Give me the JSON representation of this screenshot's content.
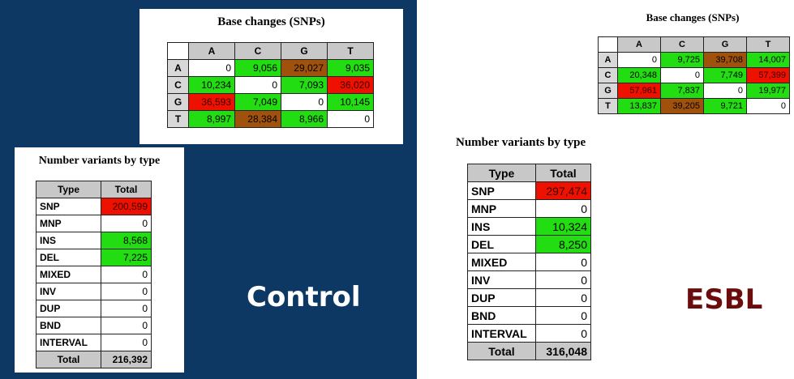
{
  "control": {
    "label": "Control",
    "snp_title": "Base changes (SNPs)",
    "snp_cols": [
      "A",
      "C",
      "G",
      "T"
    ],
    "snp_rows": [
      {
        "base": "A",
        "cells": [
          {
            "v": "0",
            "c": "white"
          },
          {
            "v": "9,056",
            "c": "green"
          },
          {
            "v": "29,027",
            "c": "brown"
          },
          {
            "v": "9,035",
            "c": "green"
          }
        ]
      },
      {
        "base": "C",
        "cells": [
          {
            "v": "10,234",
            "c": "green"
          },
          {
            "v": "0",
            "c": "white"
          },
          {
            "v": "7,093",
            "c": "green"
          },
          {
            "v": "36,020",
            "c": "red"
          }
        ]
      },
      {
        "base": "G",
        "cells": [
          {
            "v": "36,593",
            "c": "red"
          },
          {
            "v": "7,049",
            "c": "green"
          },
          {
            "v": "0",
            "c": "white"
          },
          {
            "v": "10,145",
            "c": "green"
          }
        ]
      },
      {
        "base": "T",
        "cells": [
          {
            "v": "8,997",
            "c": "green"
          },
          {
            "v": "28,384",
            "c": "brown"
          },
          {
            "v": "8,966",
            "c": "green"
          },
          {
            "v": "0",
            "c": "white"
          }
        ]
      }
    ],
    "var_title": "Number variants by type",
    "var_header": [
      "Type",
      "Total"
    ],
    "var_rows": [
      {
        "type": "SNP",
        "total": "200,599",
        "c": "red"
      },
      {
        "type": "MNP",
        "total": "0",
        "c": "white"
      },
      {
        "type": "INS",
        "total": "8,568",
        "c": "green"
      },
      {
        "type": "DEL",
        "total": "7,225",
        "c": "green"
      },
      {
        "type": "MIXED",
        "total": "0",
        "c": "white"
      },
      {
        "type": "INV",
        "total": "0",
        "c": "white"
      },
      {
        "type": "DUP",
        "total": "0",
        "c": "white"
      },
      {
        "type": "BND",
        "total": "0",
        "c": "white"
      },
      {
        "type": "INTERVAL",
        "total": "0",
        "c": "white"
      }
    ],
    "var_total": {
      "label": "Total",
      "value": "216,392"
    }
  },
  "esbl": {
    "label": "ESBL",
    "snp_title": "Base changes (SNPs)",
    "snp_cols": [
      "A",
      "C",
      "G",
      "T"
    ],
    "snp_rows": [
      {
        "base": "A",
        "cells": [
          {
            "v": "0",
            "c": "white"
          },
          {
            "v": "9,725",
            "c": "green"
          },
          {
            "v": "39,708",
            "c": "brown"
          },
          {
            "v": "14,007",
            "c": "green"
          }
        ]
      },
      {
        "base": "C",
        "cells": [
          {
            "v": "20,348",
            "c": "green"
          },
          {
            "v": "0",
            "c": "white"
          },
          {
            "v": "7,749",
            "c": "green"
          },
          {
            "v": "57,399",
            "c": "red"
          }
        ]
      },
      {
        "base": "G",
        "cells": [
          {
            "v": "57,961",
            "c": "red"
          },
          {
            "v": "7,837",
            "c": "green"
          },
          {
            "v": "0",
            "c": "white"
          },
          {
            "v": "19,977",
            "c": "green"
          }
        ]
      },
      {
        "base": "T",
        "cells": [
          {
            "v": "13,837",
            "c": "green"
          },
          {
            "v": "39,205",
            "c": "brown"
          },
          {
            "v": "9,721",
            "c": "green"
          },
          {
            "v": "0",
            "c": "white"
          }
        ]
      }
    ],
    "var_title": "Number variants by type",
    "var_header": [
      "Type",
      "Total"
    ],
    "var_rows": [
      {
        "type": "SNP",
        "total": "297,474",
        "c": "red"
      },
      {
        "type": "MNP",
        "total": "0",
        "c": "white"
      },
      {
        "type": "INS",
        "total": "10,324",
        "c": "green"
      },
      {
        "type": "DEL",
        "total": "8,250",
        "c": "green"
      },
      {
        "type": "MIXED",
        "total": "0",
        "c": "white"
      },
      {
        "type": "INV",
        "total": "0",
        "c": "white"
      },
      {
        "type": "DUP",
        "total": "0",
        "c": "white"
      },
      {
        "type": "BND",
        "total": "0",
        "c": "white"
      },
      {
        "type": "INTERVAL",
        "total": "0",
        "c": "white"
      }
    ],
    "var_total": {
      "label": "Total",
      "value": "316,048"
    }
  },
  "colors": {
    "left_background": "#0d3864",
    "control_label": "#ffffff",
    "esbl_label": "#6b0d0d",
    "green": "#22dd11",
    "red": "#ee1100",
    "brown": "#a0520c",
    "header_gray": "#c8c8c8"
  }
}
